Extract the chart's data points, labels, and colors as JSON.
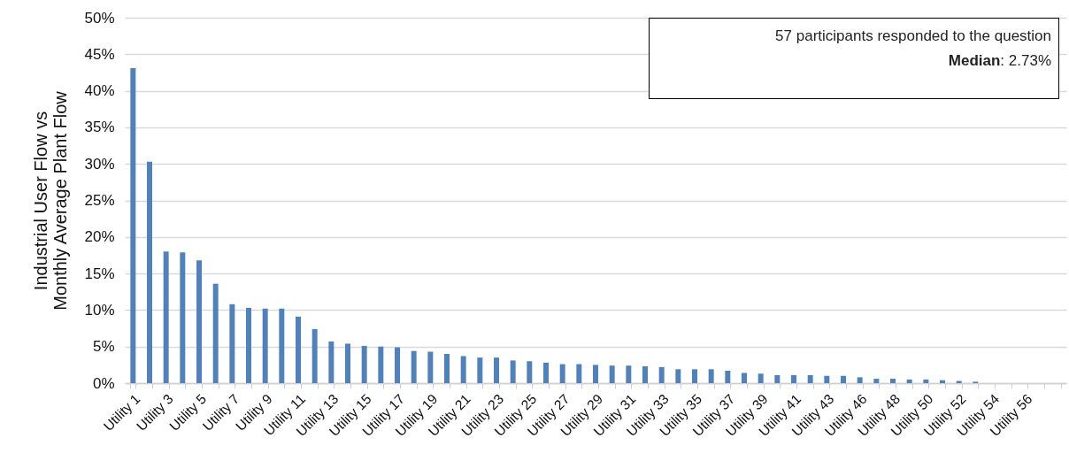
{
  "chart_data": {
    "type": "bar",
    "ylabel": "Industrial User Flow vs Monthly Average Plant Flow",
    "categories": [
      "Utility 1",
      null,
      "Utility 3",
      null,
      "Utility 5",
      null,
      "Utility 7",
      null,
      "Utility 9",
      null,
      "Utility 11",
      null,
      "Utility 13",
      null,
      "Utility 15",
      null,
      "Utility 17",
      null,
      "Utility 19",
      null,
      "Utility 21",
      null,
      "Utility 23",
      null,
      "Utility 25",
      null,
      "Utility 27",
      null,
      "Utility 29",
      null,
      "Utility 31",
      null,
      "Utility 33",
      null,
      "Utility 35",
      null,
      "Utility 37",
      null,
      "Utility 39",
      null,
      "Utility 41",
      null,
      "Utility 43",
      null,
      "Utility 46",
      null,
      "Utility 48",
      null,
      "Utility 50",
      null,
      "Utility 52",
      null,
      "Utility 54",
      null,
      "Utility 56",
      null,
      null
    ],
    "values": [
      43.1,
      30.3,
      18.0,
      17.9,
      16.8,
      13.6,
      10.8,
      10.3,
      10.2,
      10.2,
      9.1,
      7.4,
      5.7,
      5.4,
      5.1,
      5.0,
      4.9,
      4.4,
      4.3,
      4.0,
      3.7,
      3.5,
      3.5,
      3.1,
      3.0,
      2.8,
      2.6,
      2.6,
      2.5,
      2.4,
      2.4,
      2.3,
      2.2,
      1.9,
      1.9,
      1.9,
      1.7,
      1.4,
      1.3,
      1.1,
      1.1,
      1.1,
      1.0,
      1.0,
      0.8,
      0.6,
      0.6,
      0.5,
      0.5,
      0.4,
      0.3,
      0.2,
      0,
      0,
      0,
      0,
      0
    ],
    "color": "#4f81bd",
    "ylim": [
      0,
      50
    ],
    "yticks": [
      {
        "value": 0,
        "label": "0%"
      },
      {
        "value": 5,
        "label": "5%"
      },
      {
        "value": 10,
        "label": "10%"
      },
      {
        "value": 15,
        "label": "15%"
      },
      {
        "value": 20,
        "label": "20%"
      },
      {
        "value": 25,
        "label": "25%"
      },
      {
        "value": 30,
        "label": "30%"
      },
      {
        "value": 35,
        "label": "35%"
      },
      {
        "value": 40,
        "label": "40%"
      },
      {
        "value": 45,
        "label": "45%"
      },
      {
        "value": 50,
        "label": "50%"
      }
    ],
    "grid": "y",
    "annotations": [
      "57 participants responded to the question",
      "Median: 2.73%"
    ]
  }
}
